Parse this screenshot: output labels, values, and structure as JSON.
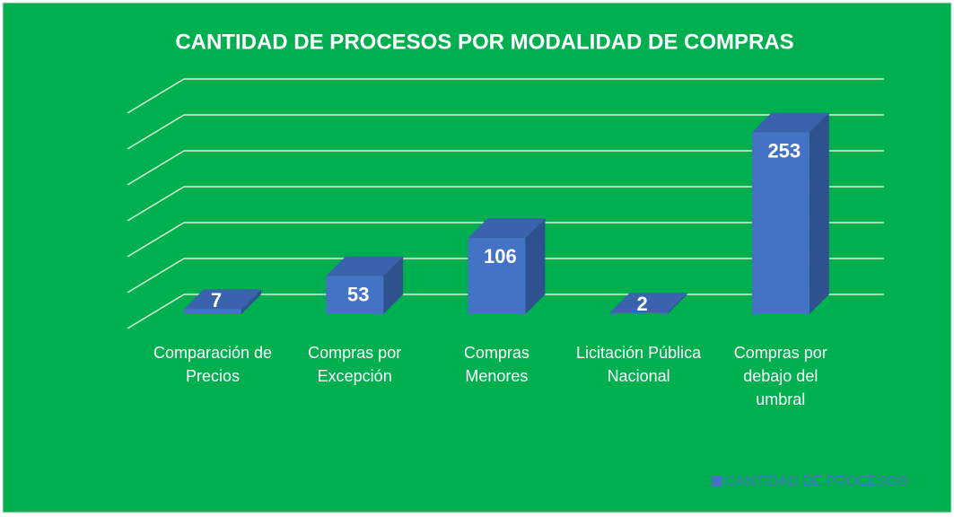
{
  "chart_data": {
    "type": "bar3d",
    "title": "CANTIDAD DE PROCESOS POR MODALIDAD DE COMPRAS",
    "categories": [
      "Comparación de Precios",
      "Compras por Excepción",
      "Compras Menores",
      "Licitación Pública Nacional",
      "Compras por debajo del umbral"
    ],
    "series": [
      {
        "name": "CANTIDAD DE PROCESOS",
        "color": "#4472c4",
        "values": [
          7,
          53,
          106,
          2,
          253
        ]
      }
    ],
    "ylim": [
      0,
      300
    ],
    "yticks": [
      0,
      50,
      100,
      150,
      200,
      250,
      300
    ],
    "grid": true,
    "legend": "bottom-right"
  }
}
